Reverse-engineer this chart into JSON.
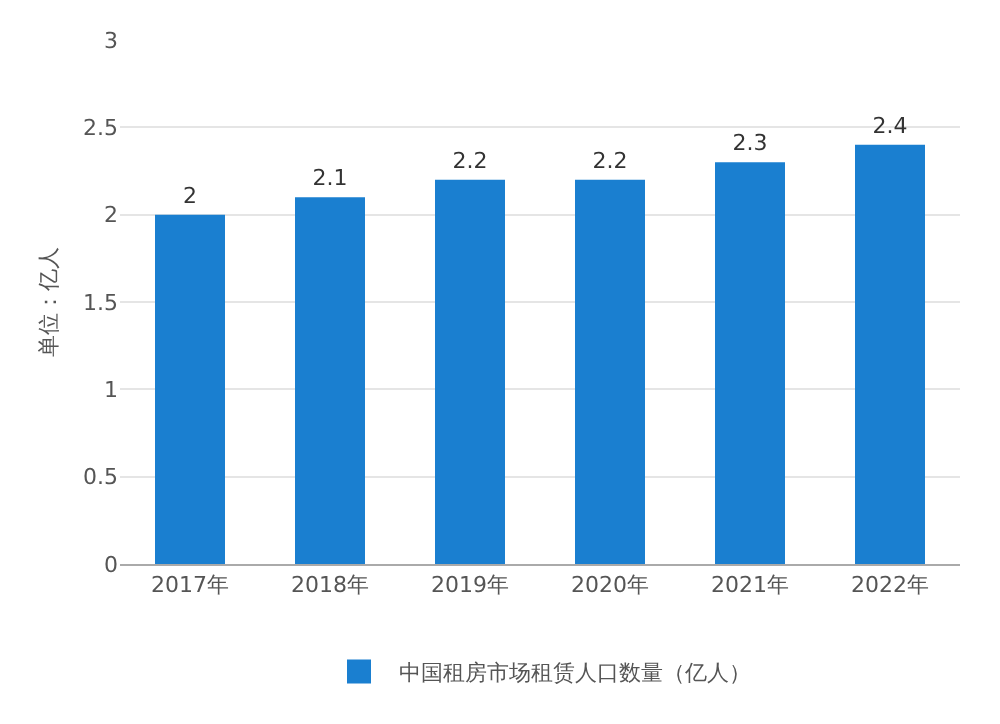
{
  "chart_data": {
    "type": "bar",
    "ylabel": "单位：亿人",
    "categories": [
      "2017年",
      "2018年",
      "2019年",
      "2020年",
      "2021年",
      "2022年"
    ],
    "series": [
      {
        "name": "中国租房市场租赁人口数量（亿人）",
        "color": "#1a7fd0",
        "values": [
          2,
          2.1,
          2.2,
          2.2,
          2.3,
          2.4
        ]
      }
    ],
    "ylim": [
      0,
      3
    ],
    "yticks": [
      0,
      0.5,
      1,
      1.5,
      2,
      2.5,
      3
    ],
    "grid": "y",
    "legend": "bottom",
    "data_labels": true
  }
}
